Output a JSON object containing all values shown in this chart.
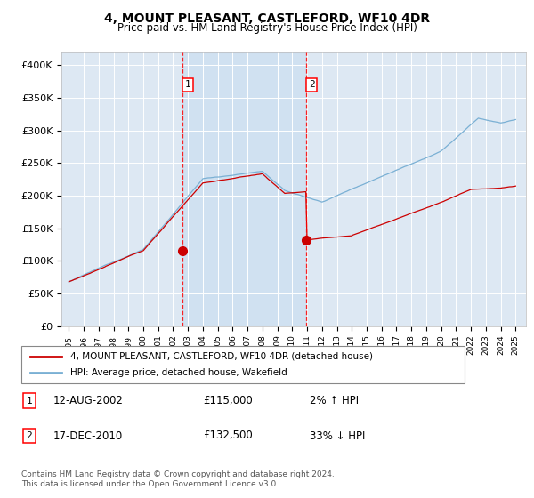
{
  "title": "4, MOUNT PLEASANT, CASTLEFORD, WF10 4DR",
  "subtitle": "Price paid vs. HM Land Registry's House Price Index (HPI)",
  "background_color": "#ffffff",
  "plot_bg_color": "#dde8f3",
  "grid_color": "#ffffff",
  "hpi_line_color": "#7ab0d4",
  "price_line_color": "#cc0000",
  "shade_color": "#c8ddf0",
  "shade_alpha": 0.6,
  "sale1_date": 2002.617,
  "sale1_price": 115000,
  "sale2_date": 2010.958,
  "sale2_price": 132500,
  "ylim": [
    0,
    420000
  ],
  "xlim": [
    1994.5,
    2025.7
  ],
  "yticks": [
    0,
    50000,
    100000,
    150000,
    200000,
    250000,
    300000,
    350000,
    400000
  ],
  "legend1_label": "4, MOUNT PLEASANT, CASTLEFORD, WF10 4DR (detached house)",
  "legend2_label": "HPI: Average price, detached house, Wakefield",
  "annotation1_label": "1",
  "annotation1_date": "12-AUG-2002",
  "annotation1_price": "£115,000",
  "annotation1_pct": "2% ↑ HPI",
  "annotation2_label": "2",
  "annotation2_date": "17-DEC-2010",
  "annotation2_price": "£132,500",
  "annotation2_pct": "33% ↓ HPI",
  "footer": "Contains HM Land Registry data © Crown copyright and database right 2024.\nThis data is licensed under the Open Government Licence v3.0."
}
